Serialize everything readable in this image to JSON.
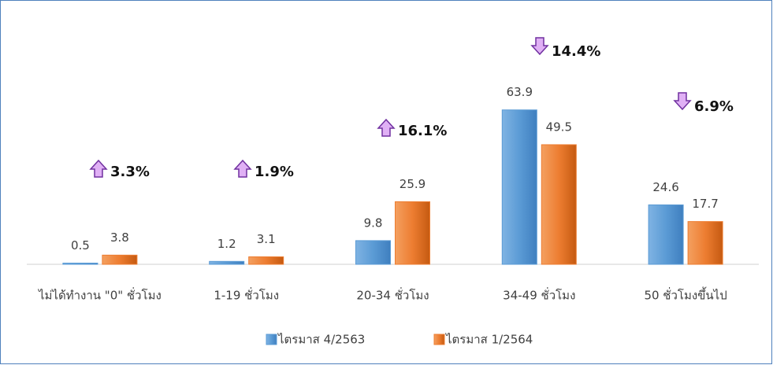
{
  "chart_data": {
    "type": "bar",
    "categories": [
      "ไม่ได้ทำงาน \"0\" ชั่วโมง",
      "1-19 ชั่วโมง",
      "20-34 ชั่วโมง",
      "34-49 ชั่วโมง",
      "50 ชั่วโมงขึ้นไป"
    ],
    "series": [
      {
        "name": "ไตรมาส 4/2563",
        "color": "#5b9bd5",
        "values": [
          0.5,
          1.2,
          9.8,
          63.9,
          24.6
        ]
      },
      {
        "name": "ไตรมาส 1/2564",
        "color": "#ed7d31",
        "values": [
          3.8,
          3.1,
          25.9,
          49.5,
          17.7
        ]
      }
    ],
    "annotations": [
      {
        "text": "3.3%",
        "direction": "up"
      },
      {
        "text": "1.9%",
        "direction": "up"
      },
      {
        "text": "16.1%",
        "direction": "up"
      },
      {
        "text": "14.4%",
        "direction": "down"
      },
      {
        "text": "6.9%",
        "direction": "down"
      }
    ],
    "ylim": [
      0,
      70
    ],
    "legend": "bottom"
  }
}
